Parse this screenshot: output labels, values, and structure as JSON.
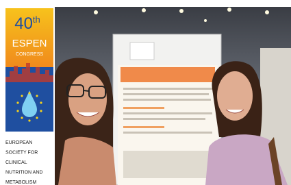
{
  "logo": {
    "number": "40",
    "suffix": "th",
    "name": "ESPEN",
    "subtitle": "CONGRESS"
  },
  "society": [
    "EUROPEAN",
    "SOCIETY FOR",
    "CLINICAL",
    "NUTRITION AND",
    "METABOLISM"
  ]
}
